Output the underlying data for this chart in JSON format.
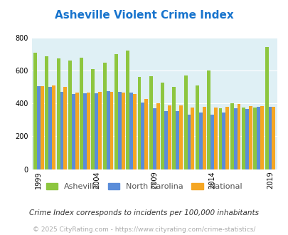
{
  "title": "Asheville Violent Crime Index",
  "title_color": "#1874cd",
  "background_color": "#dff0f5",
  "fig_background": "#ffffff",
  "years": [
    1999,
    2000,
    2001,
    2002,
    2003,
    2004,
    2005,
    2006,
    2007,
    2008,
    2009,
    2010,
    2011,
    2012,
    2013,
    2014,
    2015,
    2016,
    2017,
    2018,
    2019
  ],
  "asheville": [
    710,
    685,
    675,
    660,
    680,
    608,
    648,
    700,
    722,
    560,
    565,
    527,
    500,
    568,
    510,
    600,
    370,
    400,
    375,
    375,
    745
  ],
  "north_carolina": [
    505,
    500,
    468,
    455,
    460,
    460,
    475,
    468,
    465,
    407,
    370,
    352,
    352,
    330,
    345,
    330,
    345,
    370,
    365,
    378,
    378
  ],
  "national": [
    505,
    510,
    500,
    465,
    465,
    468,
    470,
    465,
    455,
    425,
    400,
    388,
    386,
    375,
    380,
    375,
    380,
    395,
    383,
    383,
    380
  ],
  "asheville_color": "#8dc63f",
  "nc_color": "#5b8dd9",
  "national_color": "#f5a623",
  "ylim": [
    0,
    800
  ],
  "yticks": [
    0,
    200,
    400,
    600,
    800
  ],
  "xlabel_ticks": [
    1999,
    2004,
    2009,
    2014,
    2019
  ],
  "legend_labels": [
    "Asheville",
    "North Carolina",
    "National"
  ],
  "footnote": "Crime Index corresponds to incidents per 100,000 inhabitants",
  "copyright": "© 2025 CityRating.com - https://www.cityrating.com/crime-statistics/",
  "copyright_color": "#aaaaaa"
}
